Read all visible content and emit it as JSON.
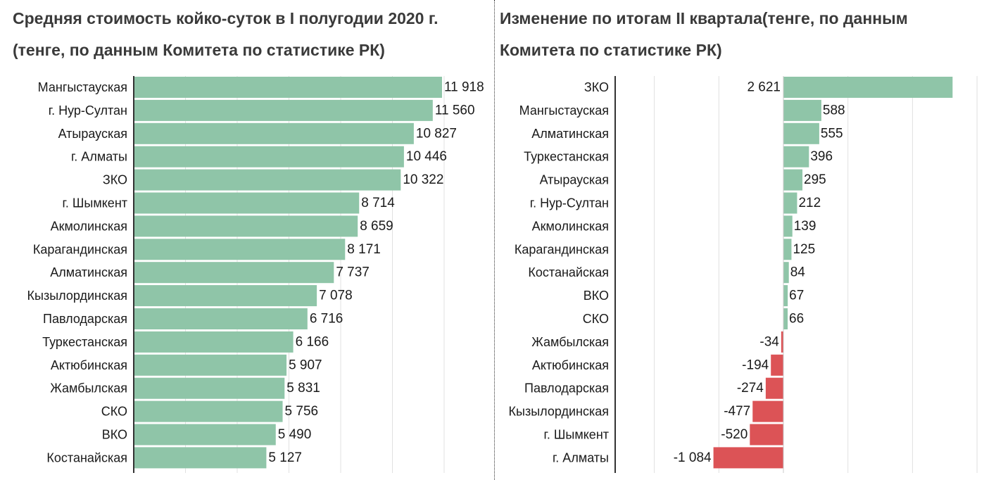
{
  "colors": {
    "positive": "#8fc5a8",
    "negative": "#dc5356",
    "grid": "#e0e0e0",
    "axis": "#333333",
    "text": "#1a1a1a"
  },
  "left": {
    "title": "Средняя стоимость койко-суток в I полугодии 2020 г. (тенге, по данным Комитета по статистике РК)"
  },
  "right": {
    "title": "Изменение по итогам II квартала(тенге, по данным Комитета по статистике РК)"
  },
  "chart_data": [
    {
      "type": "bar",
      "orientation": "horizontal",
      "title": "Средняя стоимость койко-суток в I полугодии 2020 г. (тенге, по данным Комитета по статистике РК)",
      "grid": true,
      "xlim": [
        0,
        12000
      ],
      "categories": [
        "Мангыстауская",
        "г. Нур-Султан",
        "Атырауская",
        "г. Алматы",
        "ЗКО",
        "г. Шымкент",
        "Акмолинская",
        "Карагандинская",
        "Алматинская",
        "Кызылординская",
        "Павлодарская",
        "Туркестанская",
        "Актюбинская",
        "Жамбылская",
        "СКО",
        "ВКО",
        "Костанайская"
      ],
      "values": [
        11918,
        11560,
        10827,
        10446,
        10322,
        8714,
        8659,
        8171,
        7737,
        7078,
        6716,
        6166,
        5907,
        5831,
        5756,
        5490,
        5127
      ],
      "labels": [
        "11 918",
        "11 560",
        "10 827",
        "10 446",
        "10 322",
        "8 714",
        "8 659",
        "8 171",
        "7 737",
        "7 078",
        "6 716",
        "6 166",
        "5 907",
        "5 831",
        "5 756",
        "5 490",
        "5 127"
      ]
    },
    {
      "type": "bar",
      "orientation": "horizontal",
      "title": "Изменение по итогам II квартала(тенге, по данным Комитета по статистике РК)",
      "grid": true,
      "xlim": [
        -2000,
        3000
      ],
      "categories": [
        "ЗКО",
        "Мангыстауская",
        "Алматинская",
        "Туркестанская",
        "Атырауская",
        "г. Нур-Султан",
        "Акмолинская",
        "Карагандинская",
        "Костанайская",
        "ВКО",
        "СКО",
        "Жамбылская",
        "Актюбинская",
        "Павлодарская",
        "Кызылординская",
        "г. Шымкент",
        "г. Алматы"
      ],
      "values": [
        2621,
        588,
        555,
        396,
        295,
        212,
        139,
        125,
        84,
        67,
        66,
        -34,
        -194,
        -274,
        -477,
        -520,
        -1084
      ],
      "labels": [
        "2 621",
        "588",
        "555",
        "396",
        "295",
        "212",
        "139",
        "125",
        "84",
        "67",
        "66",
        "-34",
        "-194",
        "-274",
        "-477",
        "-520",
        "-1 084"
      ]
    }
  ]
}
